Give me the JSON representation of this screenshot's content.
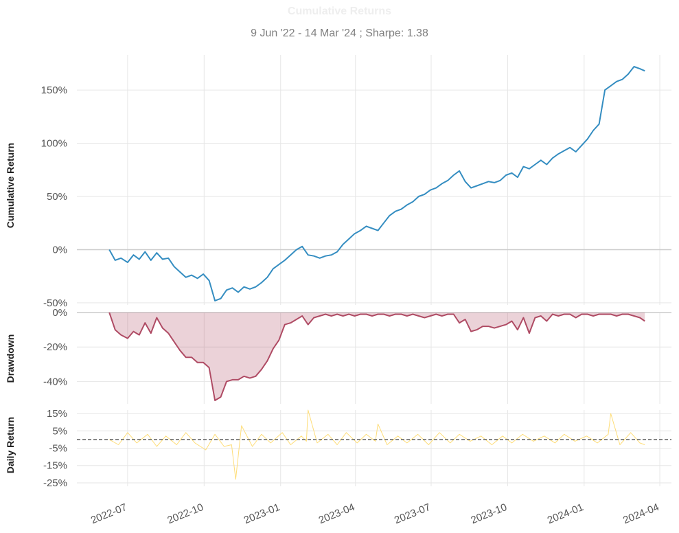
{
  "title": "Cumulative Returns",
  "subtitle": "9 Jun '22 - 14 Mar '24 ;  Sharpe: 1.38",
  "colors": {
    "cumulative": "#348dc1",
    "drawdown_line": "#af4b64",
    "drawdown_fill": "#af4b64",
    "daily": "#fedd78",
    "grid": "#e6e6e6",
    "zero_line": "#cccccc",
    "daily_mean": "#666666"
  },
  "chart_data": [
    {
      "type": "line",
      "name": "cumulative-return",
      "ylabel": "Cumulative Return",
      "ylim": [
        -52,
        183
      ],
      "yticks": [
        -50,
        0,
        50,
        100,
        150
      ],
      "ytick_labels": [
        "-50%",
        "0%",
        "50%",
        "100%",
        "150%"
      ],
      "grid": true,
      "x": [
        "2022-06-09",
        "2022-06-16",
        "2022-06-23",
        "2022-07-01",
        "2022-07-08",
        "2022-07-15",
        "2022-07-22",
        "2022-07-29",
        "2022-08-05",
        "2022-08-12",
        "2022-08-19",
        "2022-08-26",
        "2022-09-02",
        "2022-09-09",
        "2022-09-16",
        "2022-09-23",
        "2022-09-30",
        "2022-10-07",
        "2022-10-14",
        "2022-10-21",
        "2022-10-28",
        "2022-11-04",
        "2022-11-11",
        "2022-11-18",
        "2022-11-25",
        "2022-12-02",
        "2022-12-09",
        "2022-12-16",
        "2022-12-23",
        "2022-12-30",
        "2023-01-06",
        "2023-01-13",
        "2023-01-20",
        "2023-01-27",
        "2023-02-03",
        "2023-02-10",
        "2023-02-17",
        "2023-02-24",
        "2023-03-03",
        "2023-03-10",
        "2023-03-17",
        "2023-03-24",
        "2023-03-31",
        "2023-04-07",
        "2023-04-14",
        "2023-04-21",
        "2023-04-28",
        "2023-05-05",
        "2023-05-12",
        "2023-05-19",
        "2023-05-26",
        "2023-06-02",
        "2023-06-09",
        "2023-06-16",
        "2023-06-23",
        "2023-06-30",
        "2023-07-07",
        "2023-07-14",
        "2023-07-21",
        "2023-07-28",
        "2023-08-04",
        "2023-08-11",
        "2023-08-18",
        "2023-08-25",
        "2023-09-01",
        "2023-09-08",
        "2023-09-15",
        "2023-09-22",
        "2023-09-29",
        "2023-10-06",
        "2023-10-13",
        "2023-10-20",
        "2023-10-27",
        "2023-11-03",
        "2023-11-10",
        "2023-11-17",
        "2023-11-24",
        "2023-12-01",
        "2023-12-08",
        "2023-12-15",
        "2023-12-22",
        "2023-12-29",
        "2024-01-05",
        "2024-01-12",
        "2024-01-19",
        "2024-01-26",
        "2024-02-02",
        "2024-02-09",
        "2024-02-16",
        "2024-02-23",
        "2024-03-01",
        "2024-03-08",
        "2024-03-14"
      ],
      "y": [
        0,
        -10,
        -8,
        -12,
        -5,
        -9,
        -2,
        -10,
        -3,
        -9,
        -8,
        -16,
        -21,
        -26,
        -24,
        -27,
        -23,
        -29,
        -48,
        -46,
        -38,
        -36,
        -40,
        -35,
        -37,
        -35,
        -31,
        -26,
        -18,
        -14,
        -10,
        -5,
        0,
        3,
        -5,
        -6,
        -8,
        -6,
        -5,
        -2,
        5,
        10,
        15,
        18,
        22,
        20,
        18,
        25,
        32,
        36,
        38,
        42,
        45,
        50,
        52,
        56,
        58,
        62,
        65,
        70,
        74,
        64,
        58,
        60,
        62,
        64,
        63,
        65,
        70,
        72,
        68,
        78,
        76,
        80,
        84,
        80,
        86,
        90,
        93,
        96,
        92,
        98,
        104,
        112,
        118,
        150,
        154,
        158,
        160,
        165,
        172,
        170,
        168
      ]
    },
    {
      "type": "area",
      "name": "drawdown",
      "ylabel": "Drawdown",
      "ylim": [
        -53,
        0
      ],
      "yticks": [
        0,
        -20,
        -40
      ],
      "ytick_labels": [
        "0%",
        "-20%",
        "-40%"
      ],
      "grid": true,
      "x": [
        "2022-06-09",
        "2022-06-16",
        "2022-06-23",
        "2022-07-01",
        "2022-07-08",
        "2022-07-15",
        "2022-07-22",
        "2022-07-29",
        "2022-08-05",
        "2022-08-12",
        "2022-08-19",
        "2022-08-26",
        "2022-09-02",
        "2022-09-09",
        "2022-09-16",
        "2022-09-23",
        "2022-09-30",
        "2022-10-07",
        "2022-10-14",
        "2022-10-21",
        "2022-10-28",
        "2022-11-04",
        "2022-11-11",
        "2022-11-18",
        "2022-11-25",
        "2022-12-02",
        "2022-12-09",
        "2022-12-16",
        "2022-12-23",
        "2022-12-30",
        "2023-01-06",
        "2023-01-13",
        "2023-01-20",
        "2023-01-27",
        "2023-02-03",
        "2023-02-10",
        "2023-02-17",
        "2023-02-24",
        "2023-03-03",
        "2023-03-10",
        "2023-03-17",
        "2023-03-24",
        "2023-03-31",
        "2023-04-07",
        "2023-04-14",
        "2023-04-21",
        "2023-04-28",
        "2023-05-05",
        "2023-05-12",
        "2023-05-19",
        "2023-05-26",
        "2023-06-02",
        "2023-06-09",
        "2023-06-16",
        "2023-06-23",
        "2023-06-30",
        "2023-07-07",
        "2023-07-14",
        "2023-07-21",
        "2023-07-28",
        "2023-08-04",
        "2023-08-11",
        "2023-08-18",
        "2023-08-25",
        "2023-09-01",
        "2023-09-08",
        "2023-09-15",
        "2023-09-22",
        "2023-09-29",
        "2023-10-06",
        "2023-10-13",
        "2023-10-20",
        "2023-10-27",
        "2023-11-03",
        "2023-11-10",
        "2023-11-17",
        "2023-11-24",
        "2023-12-01",
        "2023-12-08",
        "2023-12-15",
        "2023-12-22",
        "2023-12-29",
        "2024-01-05",
        "2024-01-12",
        "2024-01-19",
        "2024-01-26",
        "2024-02-02",
        "2024-02-09",
        "2024-02-16",
        "2024-02-23",
        "2024-03-01",
        "2024-03-08",
        "2024-03-14"
      ],
      "y": [
        0,
        -10,
        -13,
        -15,
        -11,
        -13,
        -6,
        -12,
        -3,
        -9,
        -12,
        -17,
        -22,
        -26,
        -26,
        -29,
        -29,
        -32,
        -51,
        -49,
        -40,
        -39,
        -39,
        -37,
        -38,
        -37,
        -33,
        -28,
        -21,
        -16,
        -7,
        -6,
        -4,
        -2,
        -7,
        -3,
        -2,
        -1,
        -2,
        -1,
        -2,
        -1,
        -2,
        -1,
        -1,
        -2,
        -1,
        -1,
        -2,
        -1,
        -1,
        -2,
        -1,
        -2,
        -3,
        -2,
        -1,
        -2,
        -1,
        -1,
        -6,
        -4,
        -11,
        -10,
        -8,
        -8,
        -9,
        -8,
        -7,
        -5,
        -10,
        -3,
        -12,
        -3,
        -2,
        -5,
        -1,
        -2,
        -1,
        -1,
        -3,
        -1,
        -1,
        -2,
        -1,
        -1,
        -1,
        -2,
        -1,
        -1,
        -2,
        -3,
        -5
      ]
    },
    {
      "type": "line",
      "name": "daily-return",
      "ylabel": "Daily Return",
      "ylim": [
        -27,
        17
      ],
      "yticks": [
        15,
        5,
        -5,
        -15,
        -25
      ],
      "ytick_labels": [
        "15%",
        "5%",
        "-5%",
        "-15%",
        "-25%"
      ],
      "mean_line": 0,
      "grid": true,
      "x": [
        "2022-06-09",
        "2022-06-20",
        "2022-07-01",
        "2022-07-12",
        "2022-07-25",
        "2022-08-05",
        "2022-08-16",
        "2022-08-29",
        "2022-09-09",
        "2022-09-20",
        "2022-10-03",
        "2022-10-14",
        "2022-10-25",
        "2022-11-03",
        "2022-11-08",
        "2022-11-15",
        "2022-11-28",
        "2022-12-09",
        "2022-12-20",
        "2023-01-03",
        "2023-01-13",
        "2023-01-26",
        "2023-02-01",
        "2023-02-03",
        "2023-02-14",
        "2023-02-27",
        "2023-03-10",
        "2023-03-21",
        "2023-04-03",
        "2023-04-14",
        "2023-04-25",
        "2023-04-28",
        "2023-05-09",
        "2023-05-22",
        "2023-06-02",
        "2023-06-15",
        "2023-06-28",
        "2023-07-11",
        "2023-07-24",
        "2023-08-04",
        "2023-08-17",
        "2023-08-30",
        "2023-09-12",
        "2023-09-25",
        "2023-10-06",
        "2023-10-19",
        "2023-11-01",
        "2023-11-14",
        "2023-11-27",
        "2023-12-08",
        "2023-12-21",
        "2024-01-04",
        "2024-01-17",
        "2024-01-30",
        "2024-02-02",
        "2024-02-13",
        "2024-02-26",
        "2024-03-08",
        "2024-03-14"
      ],
      "y": [
        0,
        -3,
        4,
        -2,
        3,
        -4,
        2,
        -3,
        4,
        -2,
        -6,
        3,
        -4,
        -3,
        -23,
        8,
        -4,
        3,
        -2,
        4,
        -3,
        2,
        -1,
        17,
        -2,
        3,
        -3,
        4,
        -2,
        3,
        -1,
        9,
        -3,
        2,
        -2,
        3,
        -3,
        4,
        -2,
        3,
        -1,
        2,
        -3,
        2,
        -2,
        3,
        -1,
        2,
        -2,
        3,
        -1,
        2,
        -2,
        3,
        15,
        -3,
        4,
        -2,
        -3
      ]
    },
    {
      "type": "axis",
      "name": "shared-time-axis",
      "xlim": [
        "2022-05-01",
        "2024-04-15"
      ],
      "xticks": [
        "2022-07-01",
        "2022-10-01",
        "2023-01-01",
        "2023-04-01",
        "2023-07-01",
        "2023-10-01",
        "2024-01-01",
        "2024-04-01"
      ],
      "xtick_labels": [
        "2022-07",
        "2022-10",
        "2023-01",
        "2023-04",
        "2023-07",
        "2023-10",
        "2024-01",
        "2024-04"
      ]
    }
  ]
}
